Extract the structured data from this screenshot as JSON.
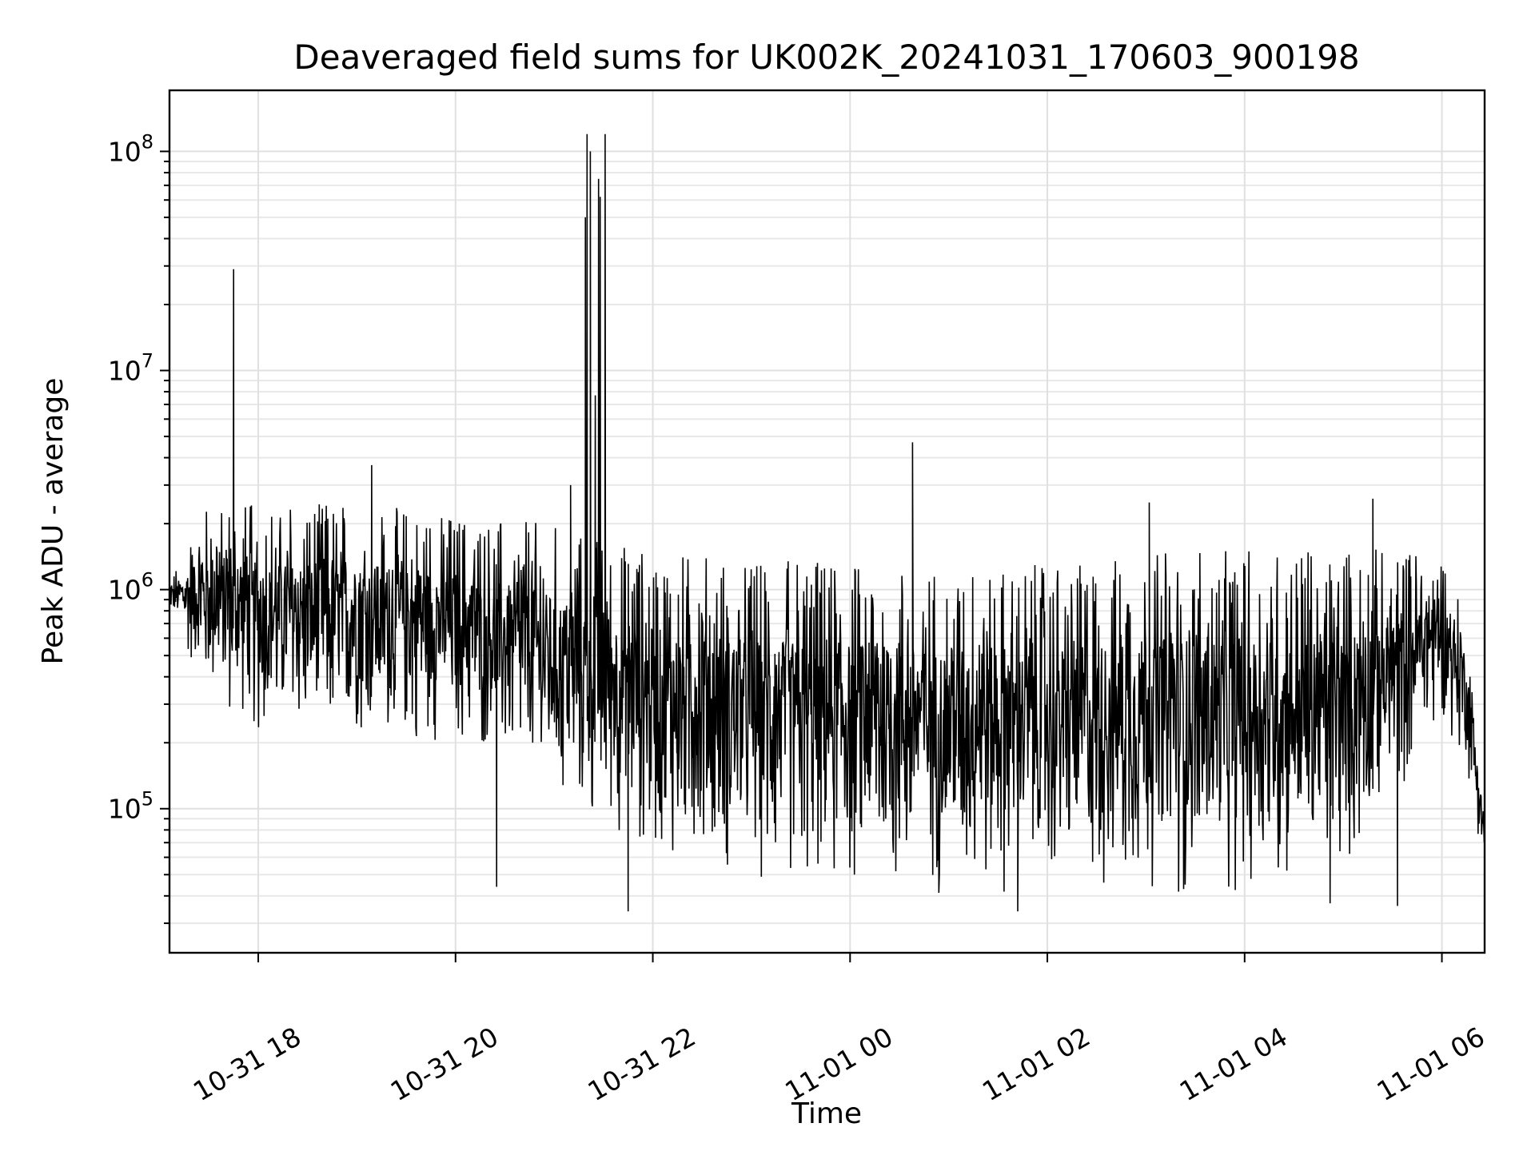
{
  "chart_data": {
    "type": "line",
    "title": "Deaveraged field sums for UK002K_20241031_170603_900198",
    "xlabel": "Time",
    "ylabel": "Peak ADU - average",
    "x_axis": {
      "type": "time",
      "range": [
        "2024-10-31 17:06",
        "2024-11-01 06:26"
      ],
      "ticks": [
        "2024-10-31 18:00",
        "2024-10-31 20:00",
        "2024-10-31 22:00",
        "2024-11-01 00:00",
        "2024-11-01 02:00",
        "2024-11-01 04:00",
        "2024-11-01 06:00"
      ],
      "tick_labels": [
        "10-31 18",
        "10-31 20",
        "10-31 22",
        "11-01 00",
        "11-01 02",
        "11-01 04",
        "11-01 06"
      ]
    },
    "y_axis": {
      "scale": "log",
      "ylim": [
        22000,
        190000000
      ],
      "ticks": [
        100000,
        1000000,
        10000000,
        100000000
      ],
      "tick_labels": [
        {
          "base": "10",
          "exp": "5"
        },
        {
          "base": "10",
          "exp": "6"
        },
        {
          "base": "10",
          "exp": "7"
        },
        {
          "base": "10",
          "exp": "8"
        }
      ]
    },
    "grid": true,
    "series": [
      {
        "color": "#000000",
        "envelope": [
          {
            "time": "2024-10-31 17:06",
            "low": 800000,
            "high": 1100000
          },
          {
            "time": "2024-10-31 17:30",
            "low": 300000,
            "high": 2500000
          },
          {
            "time": "2024-10-31 18:00",
            "low": 200000,
            "high": 2500000
          },
          {
            "time": "2024-10-31 19:00",
            "low": 200000,
            "high": 2500000
          },
          {
            "time": "2024-10-31 20:00",
            "low": 200000,
            "high": 2200000
          },
          {
            "time": "2024-10-31 21:00",
            "low": 100000,
            "high": 2000000
          },
          {
            "time": "2024-10-31 22:00",
            "low": 60000,
            "high": 1500000
          },
          {
            "time": "2024-10-31 23:00",
            "low": 45000,
            "high": 1400000
          },
          {
            "time": "2024-11-01 00:00",
            "low": 40000,
            "high": 1400000
          },
          {
            "time": "2024-11-01 01:00",
            "low": 40000,
            "high": 1300000
          },
          {
            "time": "2024-11-01 02:00",
            "low": 40000,
            "high": 1300000
          },
          {
            "time": "2024-11-01 03:00",
            "low": 40000,
            "high": 1500000
          },
          {
            "time": "2024-11-01 04:00",
            "low": 40000,
            "high": 1500000
          },
          {
            "time": "2024-11-01 05:00",
            "low": 40000,
            "high": 1600000
          },
          {
            "time": "2024-11-01 06:00",
            "low": 250000,
            "high": 1500000
          },
          {
            "time": "2024-11-01 06:15",
            "low": 150000,
            "high": 700000
          },
          {
            "time": "2024-11-01 06:26",
            "low": 50000,
            "high": 100000
          }
        ],
        "spikes": [
          {
            "time": "2024-10-31 17:45",
            "value": 29000000
          },
          {
            "time": "2024-10-31 19:09",
            "value": 3700000
          },
          {
            "time": "2024-10-31 21:10",
            "value": 3000000
          },
          {
            "time": "2024-10-31 21:19",
            "value": 50000000
          },
          {
            "time": "2024-10-31 21:20",
            "value": 120000000
          },
          {
            "time": "2024-10-31 21:22",
            "value": 100000000
          },
          {
            "time": "2024-10-31 21:25",
            "value": 7700000
          },
          {
            "time": "2024-10-31 21:27",
            "value": 75000000
          },
          {
            "time": "2024-10-31 21:28",
            "value": 62000000
          },
          {
            "time": "2024-10-31 21:31",
            "value": 120000000
          },
          {
            "time": "2024-11-01 00:38",
            "value": 4700000
          },
          {
            "time": "2024-11-01 03:02",
            "value": 2500000
          },
          {
            "time": "2024-11-01 05:18",
            "value": 2600000
          }
        ],
        "dips": [
          {
            "time": "2024-10-31 20:25",
            "value": 44000
          },
          {
            "time": "2024-10-31 21:45",
            "value": 34000
          },
          {
            "time": "2024-11-01 01:42",
            "value": 34000
          },
          {
            "time": "2024-11-01 04:52",
            "value": 37000
          },
          {
            "time": "2024-11-01 05:33",
            "value": 36000
          }
        ]
      }
    ]
  }
}
